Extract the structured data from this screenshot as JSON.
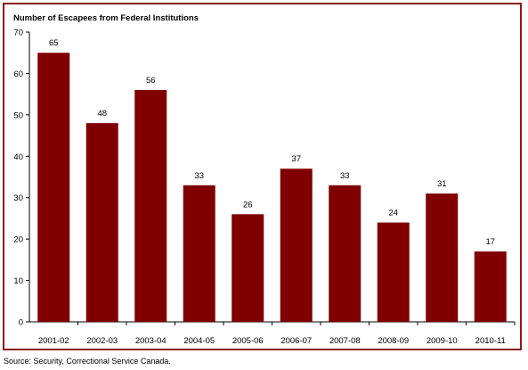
{
  "chart_data": {
    "type": "bar",
    "title": "Number of Escapees from Federal Institutions",
    "categories": [
      "2001-02",
      "2002-03",
      "2003-04",
      "2004-05",
      "2005-06",
      "2006-07",
      "2007-08",
      "2008-09",
      "2009-10",
      "2010-11"
    ],
    "values": [
      65,
      48,
      56,
      33,
      26,
      37,
      33,
      24,
      31,
      17
    ],
    "xlabel": "",
    "ylabel": "",
    "ylim": [
      0,
      70
    ],
    "yticks": [
      0,
      10,
      20,
      30,
      40,
      50,
      60,
      70
    ],
    "grid": false,
    "data_labels": true,
    "bar_color": "#800000",
    "frame_color": "#8b1a1a"
  },
  "source": "Source:  Security, Correctional Service Canada."
}
